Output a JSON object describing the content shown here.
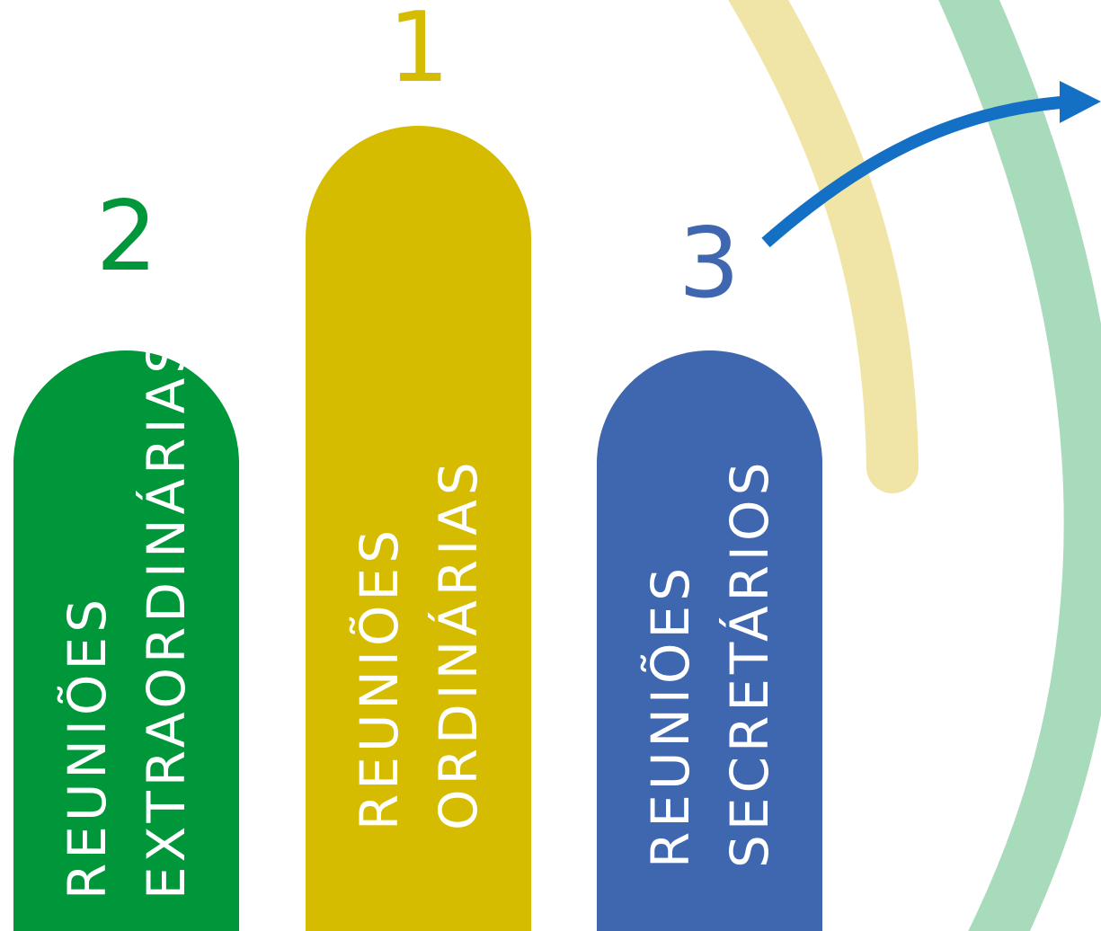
{
  "colors": {
    "green": "#00963a",
    "yellow": "#d6bc00",
    "blue": "#3f67b0",
    "arc_green": "#a8dbbb",
    "arc_yellow": "#f0e5a6",
    "arrow_blue": "#1470c4",
    "text_white": "#ffffff"
  },
  "pillars": [
    {
      "rank": "2",
      "line1": "REUNIÕES",
      "line2": "EXTRAORDINÁRIAS",
      "color_key": "green"
    },
    {
      "rank": "1",
      "line1": "REUNIÕES",
      "line2": "ORDINÁRIAS",
      "color_key": "yellow"
    },
    {
      "rank": "3",
      "line1": "REUNIÕES",
      "line2": "SECRETÁRIOS",
      "color_key": "blue"
    }
  ],
  "icons": {
    "arrow": "arrow-right-icon"
  }
}
